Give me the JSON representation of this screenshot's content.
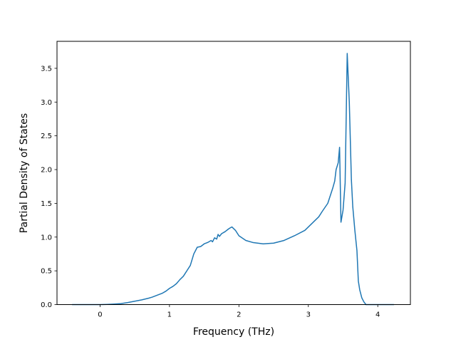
{
  "chart_data": {
    "type": "line",
    "title": "",
    "xlabel": "Frequency (THz)",
    "ylabel": "Partial Density of States",
    "xlim": [
      -0.62,
      4.47
    ],
    "ylim": [
      0,
      3.9
    ],
    "x_ticks": [
      0,
      1,
      2,
      3,
      4
    ],
    "x_tick_labels": [
      "0",
      "1",
      "2",
      "3",
      "4"
    ],
    "y_ticks": [
      0,
      0.5,
      1.0,
      1.5,
      2.0,
      2.5,
      3.0,
      3.5
    ],
    "y_tick_labels": [
      "0.0",
      "0.5",
      "1.0",
      "1.5",
      "2.0",
      "2.5",
      "3.0",
      "3.5"
    ],
    "grid": false,
    "legend": "none",
    "series": [
      {
        "color": "#1f77b4",
        "x": [
          -0.4,
          -0.2,
          0.0,
          0.1,
          0.2,
          0.3,
          0.4,
          0.5,
          0.6,
          0.7,
          0.75,
          0.8,
          0.85,
          0.9,
          0.95,
          1.0,
          1.05,
          1.1,
          1.15,
          1.2,
          1.25,
          1.3,
          1.35,
          1.4,
          1.45,
          1.5,
          1.55,
          1.6,
          1.62,
          1.65,
          1.68,
          1.7,
          1.72,
          1.75,
          1.8,
          1.85,
          1.88,
          1.9,
          1.95,
          2.0,
          2.1,
          2.2,
          2.35,
          2.5,
          2.65,
          2.8,
          2.95,
          3.05,
          3.15,
          3.2,
          3.28,
          3.35,
          3.38,
          3.4,
          3.43,
          3.45,
          3.47,
          3.5,
          3.53,
          3.56,
          3.59,
          3.62,
          3.64,
          3.67,
          3.7,
          3.72,
          3.74,
          3.77,
          3.8,
          3.83,
          3.86,
          3.9,
          4.0,
          4.1,
          4.23
        ],
        "y": [
          0.0,
          0.0,
          0.0,
          0.003,
          0.008,
          0.015,
          0.03,
          0.05,
          0.07,
          0.095,
          0.11,
          0.13,
          0.15,
          0.17,
          0.2,
          0.24,
          0.27,
          0.31,
          0.37,
          0.42,
          0.5,
          0.58,
          0.75,
          0.85,
          0.86,
          0.9,
          0.92,
          0.95,
          0.93,
          0.99,
          0.97,
          1.04,
          1.01,
          1.05,
          1.08,
          1.12,
          1.14,
          1.15,
          1.1,
          1.02,
          0.95,
          0.92,
          0.9,
          0.91,
          0.95,
          1.02,
          1.1,
          1.2,
          1.3,
          1.38,
          1.5,
          1.72,
          1.83,
          2.0,
          2.1,
          2.33,
          1.22,
          1.4,
          1.8,
          3.72,
          3.0,
          1.85,
          1.45,
          1.1,
          0.8,
          0.35,
          0.22,
          0.1,
          0.04,
          0.0,
          0.0,
          0.0,
          0.0,
          0.0,
          0.0
        ]
      }
    ]
  }
}
